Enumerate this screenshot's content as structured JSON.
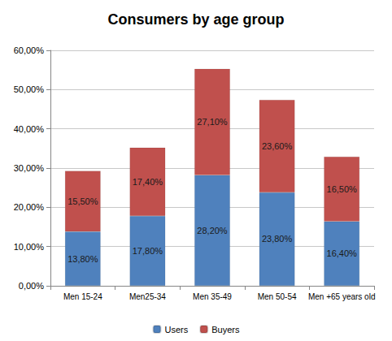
{
  "chart_data": {
    "type": "bar",
    "title": "Consumers by age group",
    "categories": [
      "Men 15-24",
      "Men25-34",
      "Men 35-49",
      "Men 50-54",
      "Men +65 years old"
    ],
    "series": [
      {
        "name": "Users",
        "color": "#4f81bd",
        "values": [
          13.8,
          17.8,
          28.2,
          23.8,
          16.4
        ],
        "value_labels": [
          "13,80%",
          "17,80%",
          "28,20%",
          "23,80%",
          "16,40%"
        ]
      },
      {
        "name": "Buyers",
        "color": "#c0504d",
        "values": [
          15.5,
          17.4,
          27.1,
          23.6,
          16.5
        ],
        "value_labels": [
          "15,50%",
          "17,40%",
          "27,10%",
          "23,60%",
          "16,50%"
        ]
      }
    ],
    "ylim": [
      0,
      60
    ],
    "yticks": [
      {
        "value": 0,
        "label": "0,00%"
      },
      {
        "value": 10,
        "label": "10,00%"
      },
      {
        "value": 20,
        "label": "20,00%"
      },
      {
        "value": 30,
        "label": "30,00%"
      },
      {
        "value": 40,
        "label": "40,00%"
      },
      {
        "value": 50,
        "label": "50,00%"
      },
      {
        "value": 60,
        "label": "60,00%"
      }
    ],
    "grid": true,
    "stacked": true,
    "data_labels": true,
    "legend": "bottom"
  }
}
